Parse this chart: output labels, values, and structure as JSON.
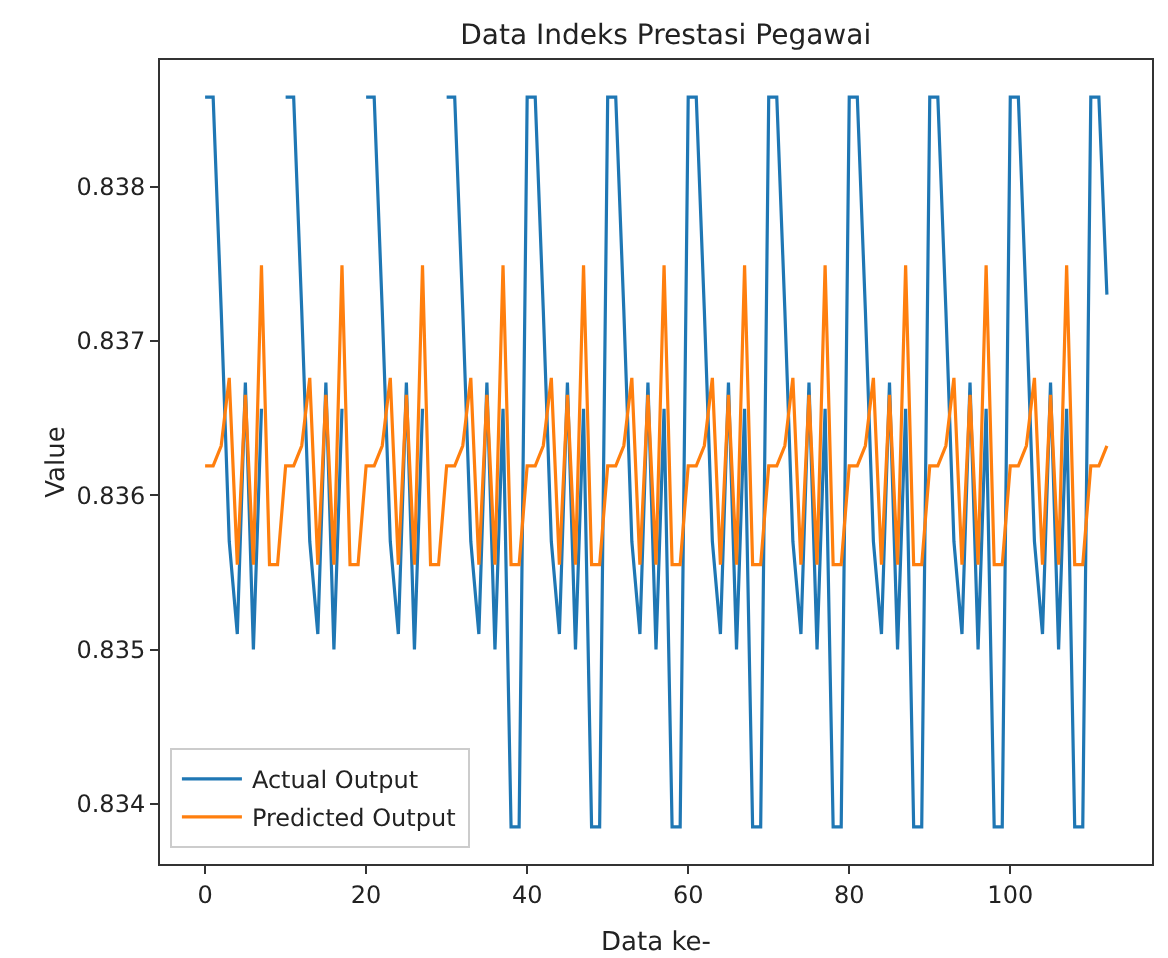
{
  "chart_data": {
    "type": "line",
    "title": "Data Indeks Prestasi Pegawai",
    "xlabel": "Data ke-",
    "ylabel": "Value",
    "x": [
      0,
      1,
      2,
      3,
      4,
      5,
      6,
      7,
      8,
      9,
      10,
      11,
      12,
      13,
      14,
      15,
      16,
      17,
      18,
      19,
      20,
      21,
      22,
      23,
      24,
      25,
      26,
      27,
      28,
      29,
      30,
      31,
      32,
      33,
      34,
      35,
      36,
      37,
      38,
      39,
      40,
      41,
      42,
      43,
      44,
      45,
      46,
      47,
      48,
      49,
      50,
      51,
      52,
      53,
      54,
      55,
      56,
      57,
      58,
      59,
      60,
      61,
      62,
      63,
      64,
      65,
      66,
      67,
      68,
      69,
      70,
      71,
      72,
      73,
      74,
      75,
      76,
      77,
      78,
      79,
      80,
      81,
      82,
      83,
      84,
      85,
      86,
      87,
      88,
      89,
      90,
      91,
      92,
      93,
      94,
      95,
      96,
      97,
      98,
      99,
      100,
      101,
      102,
      103,
      104,
      105,
      106,
      107,
      108,
      109,
      110,
      111,
      112
    ],
    "series": [
      {
        "name": "Actual Output",
        "color": "#1f77b4",
        "values": [
          0.83858,
          0.83858,
          0.8372,
          0.8357,
          0.8351,
          0.83673,
          0.835,
          0.83656,
          null,
          null,
          0.83858,
          0.83858,
          0.8372,
          0.8357,
          0.8351,
          0.83673,
          0.835,
          0.83656,
          null,
          null,
          0.83858,
          0.83858,
          0.8372,
          0.8357,
          0.8351,
          0.83673,
          0.835,
          0.83656,
          null,
          null,
          0.83858,
          0.83858,
          0.8372,
          0.8357,
          0.8351,
          0.83673,
          0.835,
          0.83656,
          0.83385,
          0.83385,
          0.83858,
          0.83858,
          0.8372,
          0.8357,
          0.8351,
          0.83673,
          0.835,
          0.83656,
          0.83385,
          0.83385,
          0.83858,
          0.83858,
          0.8372,
          0.8357,
          0.8351,
          0.83673,
          0.835,
          0.83656,
          0.83385,
          0.83385,
          0.83858,
          0.83858,
          0.8372,
          0.8357,
          0.8351,
          0.83673,
          0.835,
          0.83656,
          0.83385,
          0.83385,
          0.83858,
          0.83858,
          0.8372,
          0.8357,
          0.8351,
          0.83673,
          0.835,
          0.83656,
          0.83385,
          0.83385,
          0.83858,
          0.83858,
          0.8372,
          0.8357,
          0.8351,
          0.83673,
          0.835,
          0.83656,
          0.83385,
          0.83385,
          0.83858,
          0.83858,
          0.8372,
          0.8357,
          0.8351,
          0.83673,
          0.835,
          0.83656,
          0.83385,
          0.83385,
          0.83858,
          0.83858,
          0.8372,
          0.8357,
          0.8351,
          0.83673,
          0.835,
          0.83656,
          0.83385,
          0.83385,
          0.83858,
          0.83858,
          0.8373
        ]
      },
      {
        "name": "Predicted Output",
        "color": "#ff7f0e",
        "values": [
          0.83619,
          0.83619,
          0.83632,
          0.83676,
          0.83555,
          0.83665,
          0.83555,
          0.83749,
          0.83555,
          0.83555,
          0.83619,
          0.83619,
          0.83632,
          0.83676,
          0.83555,
          0.83665,
          0.83555,
          0.83749,
          0.83555,
          0.83555,
          0.83619,
          0.83619,
          0.83632,
          0.83676,
          0.83555,
          0.83665,
          0.83555,
          0.83749,
          0.83555,
          0.83555,
          0.83619,
          0.83619,
          0.83632,
          0.83676,
          0.83555,
          0.83665,
          0.83555,
          0.83749,
          0.83555,
          0.83555,
          0.83619,
          0.83619,
          0.83632,
          0.83676,
          0.83555,
          0.83665,
          0.83555,
          0.83749,
          0.83555,
          0.83555,
          0.83619,
          0.83619,
          0.83632,
          0.83676,
          0.83555,
          0.83665,
          0.83555,
          0.83749,
          0.83555,
          0.83555,
          0.83619,
          0.83619,
          0.83632,
          0.83676,
          0.83555,
          0.83665,
          0.83555,
          0.83749,
          0.83555,
          0.83555,
          0.83619,
          0.83619,
          0.83632,
          0.83676,
          0.83555,
          0.83665,
          0.83555,
          0.83749,
          0.83555,
          0.83555,
          0.83619,
          0.83619,
          0.83632,
          0.83676,
          0.83555,
          0.83665,
          0.83555,
          0.83749,
          0.83555,
          0.83555,
          0.83619,
          0.83619,
          0.83632,
          0.83676,
          0.83555,
          0.83665,
          0.83555,
          0.83749,
          0.83555,
          0.83555,
          0.83619,
          0.83619,
          0.83632,
          0.83676,
          0.83555,
          0.83665,
          0.83555,
          0.83749,
          0.83555,
          0.83555,
          0.83619,
          0.83619,
          0.83632
        ]
      }
    ],
    "xlim": [
      -5.6,
      117.6
    ],
    "xticks": [
      0,
      20,
      40,
      60,
      80,
      100
    ],
    "ylim": [
      0.83361,
      0.83882
    ],
    "yticks": [
      0.834,
      0.835,
      0.836,
      0.837,
      0.838
    ],
    "grid": false,
    "legend": "bottom left"
  }
}
